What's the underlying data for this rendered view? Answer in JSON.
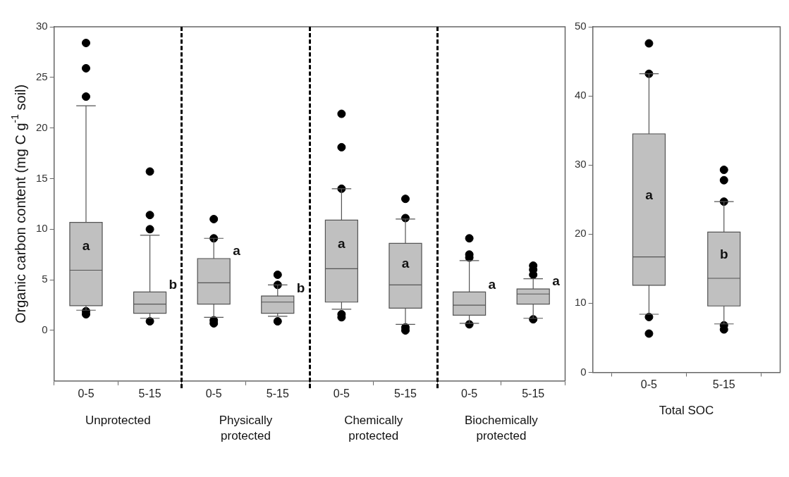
{
  "chart_data": [
    {
      "type": "box",
      "ylabel": "Organic carbon content (mg C g$^{-1}$ soil)",
      "color": "#c0c0c0",
      "categories": [
        "0-5",
        "5-15",
        "0-5",
        "5-15",
        "0-5",
        "5-15",
        "0-5",
        "5-15"
      ],
      "ylim": [
        -5,
        30
      ],
      "yticks": [
        0,
        5,
        10,
        15,
        20,
        25,
        30
      ],
      "boxes": [
        {
          "low": 2.0,
          "q1": 2.45,
          "median": 5.95,
          "q3": 10.67,
          "high": 22.2,
          "outliers": [
            28.4,
            25.9,
            23.1,
            1.9,
            1.6
          ]
        },
        {
          "low": 1.2,
          "q1": 1.7,
          "median": 2.6,
          "q3": 3.8,
          "high": 9.4,
          "outliers": [
            15.7,
            11.4,
            10.0,
            0.9
          ]
        },
        {
          "low": 1.3,
          "q1": 2.6,
          "median": 4.7,
          "q3": 7.1,
          "high": 9.1,
          "outliers": [
            11.0,
            9.1,
            1.0,
            0.7
          ]
        },
        {
          "low": 1.4,
          "q1": 1.7,
          "median": 2.8,
          "q3": 3.4,
          "high": 4.5,
          "outliers": [
            5.5,
            4.5,
            0.9
          ]
        },
        {
          "low": 2.1,
          "q1": 2.8,
          "median": 6.1,
          "q3": 10.9,
          "high": 14.0,
          "outliers": [
            21.4,
            18.1,
            14.0,
            1.6,
            1.3
          ]
        },
        {
          "low": 0.6,
          "q1": 2.2,
          "median": 4.5,
          "q3": 8.6,
          "high": 11.0,
          "outliers": [
            13.0,
            11.1,
            0.3,
            0.0
          ]
        },
        {
          "low": 0.7,
          "q1": 1.5,
          "median": 2.5,
          "q3": 3.8,
          "high": 6.9,
          "outliers": [
            9.1,
            7.5,
            7.2,
            0.6
          ]
        },
        {
          "low": 1.2,
          "q1": 2.6,
          "median": 3.6,
          "q3": 4.1,
          "high": 5.1,
          "outliers": [
            6.4,
            6.0,
            5.5,
            1.1
          ]
        }
      ],
      "annotations": [
        "a",
        "b",
        "a",
        "b",
        "a",
        "a",
        "a",
        "a",
        "Unprotected",
        "Physically protected",
        "Chemically protected",
        "Biochemically protected"
      ]
    },
    {
      "type": "box",
      "xlabel": "Total SOC",
      "color": "#c0c0c0",
      "categories": [
        "0-5",
        "5-15"
      ],
      "ylim": [
        0,
        50
      ],
      "yticks": [
        0,
        10,
        20,
        30,
        40,
        50
      ],
      "boxes": [
        {
          "low": 8.4,
          "q1": 12.6,
          "median": 16.7,
          "q3": 34.5,
          "high": 43.2,
          "outliers": [
            47.6,
            43.2,
            8.0,
            5.6
          ]
        },
        {
          "low": 7.0,
          "q1": 9.6,
          "median": 13.6,
          "q3": 20.3,
          "high": 24.7,
          "outliers": [
            29.3,
            27.8,
            24.7,
            6.8,
            6.2
          ]
        }
      ],
      "annotations": [
        "a",
        "b"
      ]
    }
  ]
}
